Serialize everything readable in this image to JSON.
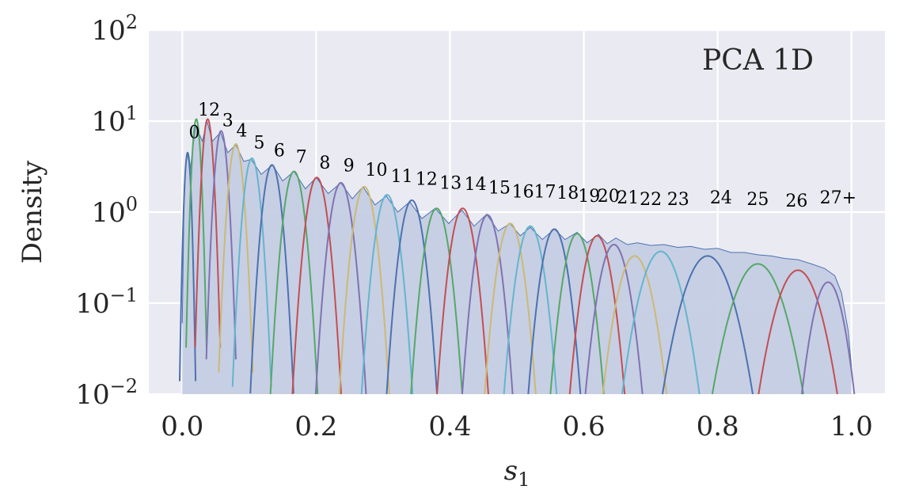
{
  "chart_data": {
    "type": "line",
    "title": "PCA 1D",
    "xlabel": "s",
    "xlabel_sub": "1",
    "ylabel": "Density",
    "xlim": [
      -0.05,
      1.05
    ],
    "ylim": [
      0.01,
      100
    ],
    "yscale": "log",
    "grid": true,
    "x_ticks": [
      0.0,
      0.2,
      0.4,
      0.6,
      0.8,
      1.0
    ],
    "x_tick_labels": [
      "0.0",
      "0.2",
      "0.4",
      "0.6",
      "0.8",
      "1.0"
    ],
    "y_ticks": [
      {
        "value": 0.01,
        "base": "10",
        "exp": "−2"
      },
      {
        "value": 0.1,
        "base": "10",
        "exp": "−1"
      },
      {
        "value": 1,
        "base": "10",
        "exp": "0"
      },
      {
        "value": 10,
        "base": "10",
        "exp": "1"
      },
      {
        "value": 100,
        "base": "10",
        "exp": "2"
      }
    ],
    "fill_color": "#c5cde3",
    "fill_edge_color": "#4c72b0",
    "palette": [
      "#4c72b0",
      "#55a868",
      "#c44e52",
      "#8172b2",
      "#ccb974",
      "#64b5cd"
    ],
    "total_density": [
      [
        0.0,
        0.06
      ],
      [
        0.003,
        2.0
      ],
      [
        0.007,
        4.5
      ],
      [
        0.012,
        3.0
      ],
      [
        0.02,
        9.0
      ],
      [
        0.03,
        6.0
      ],
      [
        0.037,
        10.0
      ],
      [
        0.045,
        6.0
      ],
      [
        0.057,
        7.5
      ],
      [
        0.068,
        4.5
      ],
      [
        0.08,
        5.5
      ],
      [
        0.092,
        3.6
      ],
      [
        0.103,
        3.8
      ],
      [
        0.118,
        2.6
      ],
      [
        0.135,
        3.3
      ],
      [
        0.15,
        2.2
      ],
      [
        0.167,
        2.8
      ],
      [
        0.184,
        1.8
      ],
      [
        0.2,
        2.4
      ],
      [
        0.218,
        1.6
      ],
      [
        0.237,
        2.1
      ],
      [
        0.254,
        1.4
      ],
      [
        0.27,
        1.9
      ],
      [
        0.288,
        1.2
      ],
      [
        0.305,
        1.5
      ],
      [
        0.322,
        1.0
      ],
      [
        0.34,
        1.3
      ],
      [
        0.358,
        0.85
      ],
      [
        0.378,
        1.1
      ],
      [
        0.398,
        0.75
      ],
      [
        0.418,
        1.05
      ],
      [
        0.436,
        0.7
      ],
      [
        0.455,
        0.95
      ],
      [
        0.472,
        0.62
      ],
      [
        0.49,
        0.75
      ],
      [
        0.505,
        0.55
      ],
      [
        0.52,
        0.68
      ],
      [
        0.538,
        0.5
      ],
      [
        0.556,
        0.65
      ],
      [
        0.572,
        0.5
      ],
      [
        0.59,
        0.6
      ],
      [
        0.605,
        0.46
      ],
      [
        0.622,
        0.57
      ],
      [
        0.635,
        0.45
      ],
      [
        0.648,
        0.52
      ],
      [
        0.665,
        0.44
      ],
      [
        0.68,
        0.46
      ],
      [
        0.7,
        0.43
      ],
      [
        0.72,
        0.44
      ],
      [
        0.74,
        0.41
      ],
      [
        0.76,
        0.42
      ],
      [
        0.78,
        0.39
      ],
      [
        0.8,
        0.4
      ],
      [
        0.82,
        0.36
      ],
      [
        0.84,
        0.36
      ],
      [
        0.86,
        0.34
      ],
      [
        0.88,
        0.33
      ],
      [
        0.9,
        0.31
      ],
      [
        0.92,
        0.3
      ],
      [
        0.94,
        0.27
      ],
      [
        0.96,
        0.24
      ],
      [
        0.975,
        0.2
      ],
      [
        0.985,
        0.13
      ],
      [
        0.995,
        0.05
      ],
      [
        1.0,
        0.02
      ]
    ],
    "series": [
      {
        "label": "0",
        "center": 0.008,
        "peak": 4.5,
        "sigma": 0.0035
      },
      {
        "label": "1",
        "center": 0.021,
        "peak": 10.5,
        "sigma": 0.0045
      },
      {
        "label": "2",
        "center": 0.038,
        "peak": 10.5,
        "sigma": 0.0055
      },
      {
        "label": "3",
        "center": 0.058,
        "peak": 7.8,
        "sigma": 0.0065
      },
      {
        "label": "4",
        "center": 0.08,
        "peak": 5.6,
        "sigma": 0.0075
      },
      {
        "label": "5",
        "center": 0.104,
        "peak": 3.9,
        "sigma": 0.0085
      },
      {
        "label": "6",
        "center": 0.134,
        "peak": 3.3,
        "sigma": 0.0095
      },
      {
        "label": "7",
        "center": 0.167,
        "peak": 2.8,
        "sigma": 0.0105
      },
      {
        "label": "8",
        "center": 0.201,
        "peak": 2.4,
        "sigma": 0.011
      },
      {
        "label": "9",
        "center": 0.237,
        "peak": 2.1,
        "sigma": 0.0115
      },
      {
        "label": "10",
        "center": 0.272,
        "peak": 1.9,
        "sigma": 0.0115
      },
      {
        "label": "11",
        "center": 0.306,
        "peak": 1.55,
        "sigma": 0.012
      },
      {
        "label": "12",
        "center": 0.343,
        "peak": 1.35,
        "sigma": 0.012
      },
      {
        "label": "13",
        "center": 0.38,
        "peak": 1.1,
        "sigma": 0.0125
      },
      {
        "label": "14",
        "center": 0.419,
        "peak": 1.1,
        "sigma": 0.0125
      },
      {
        "label": "15",
        "center": 0.456,
        "peak": 0.93,
        "sigma": 0.0125
      },
      {
        "label": "16",
        "center": 0.49,
        "peak": 0.75,
        "sigma": 0.013
      },
      {
        "label": "17",
        "center": 0.52,
        "peak": 0.7,
        "sigma": 0.0135
      },
      {
        "label": "18",
        "center": 0.556,
        "peak": 0.65,
        "sigma": 0.0135
      },
      {
        "label": "19",
        "center": 0.59,
        "peak": 0.58,
        "sigma": 0.014
      },
      {
        "label": "20",
        "center": 0.62,
        "peak": 0.55,
        "sigma": 0.0145
      },
      {
        "label": "21",
        "center": 0.645,
        "peak": 0.44,
        "sigma": 0.0155
      },
      {
        "label": "22",
        "center": 0.676,
        "peak": 0.33,
        "sigma": 0.018
      },
      {
        "label": "23",
        "center": 0.715,
        "peak": 0.37,
        "sigma": 0.0215
      },
      {
        "label": "24",
        "center": 0.785,
        "peak": 0.33,
        "sigma": 0.0255
      },
      {
        "label": "25",
        "center": 0.86,
        "peak": 0.27,
        "sigma": 0.0265
      },
      {
        "label": "26",
        "center": 0.92,
        "peak": 0.23,
        "sigma": 0.0235
      },
      {
        "label": "27+",
        "center": 0.965,
        "peak": 0.17,
        "sigma": 0.0165
      }
    ],
    "peak_labels": [
      {
        "text": "0",
        "x": 0.018,
        "y": 6.5
      },
      {
        "text": "12",
        "x": 0.04,
        "y": 11.5
      },
      {
        "text": "3",
        "x": 0.068,
        "y": 8.8
      },
      {
        "text": "4",
        "x": 0.089,
        "y": 6.8
      },
      {
        "text": "5",
        "x": 0.115,
        "y": 5.0
      },
      {
        "text": "6",
        "x": 0.145,
        "y": 4.1
      },
      {
        "text": "7",
        "x": 0.178,
        "y": 3.5
      },
      {
        "text": "8",
        "x": 0.213,
        "y": 3.0
      },
      {
        "text": "9",
        "x": 0.249,
        "y": 2.8
      },
      {
        "text": "10",
        "x": 0.29,
        "y": 2.5
      },
      {
        "text": "11",
        "x": 0.328,
        "y": 2.15
      },
      {
        "text": "12",
        "x": 0.365,
        "y": 2.0
      },
      {
        "text": "13",
        "x": 0.401,
        "y": 1.8
      },
      {
        "text": "14",
        "x": 0.438,
        "y": 1.75
      },
      {
        "text": "15",
        "x": 0.474,
        "y": 1.6
      },
      {
        "text": "16",
        "x": 0.509,
        "y": 1.45
      },
      {
        "text": "17",
        "x": 0.542,
        "y": 1.45
      },
      {
        "text": "18",
        "x": 0.576,
        "y": 1.4
      },
      {
        "text": "19",
        "x": 0.608,
        "y": 1.3
      },
      {
        "text": "20",
        "x": 0.637,
        "y": 1.3
      },
      {
        "text": "21",
        "x": 0.666,
        "y": 1.25
      },
      {
        "text": "22",
        "x": 0.7,
        "y": 1.2
      },
      {
        "text": "23",
        "x": 0.741,
        "y": 1.2
      },
      {
        "text": "24",
        "x": 0.805,
        "y": 1.25
      },
      {
        "text": "25",
        "x": 0.86,
        "y": 1.2
      },
      {
        "text": "26",
        "x": 0.918,
        "y": 1.15
      },
      {
        "text": "27+",
        "x": 0.98,
        "y": 1.25
      }
    ]
  }
}
